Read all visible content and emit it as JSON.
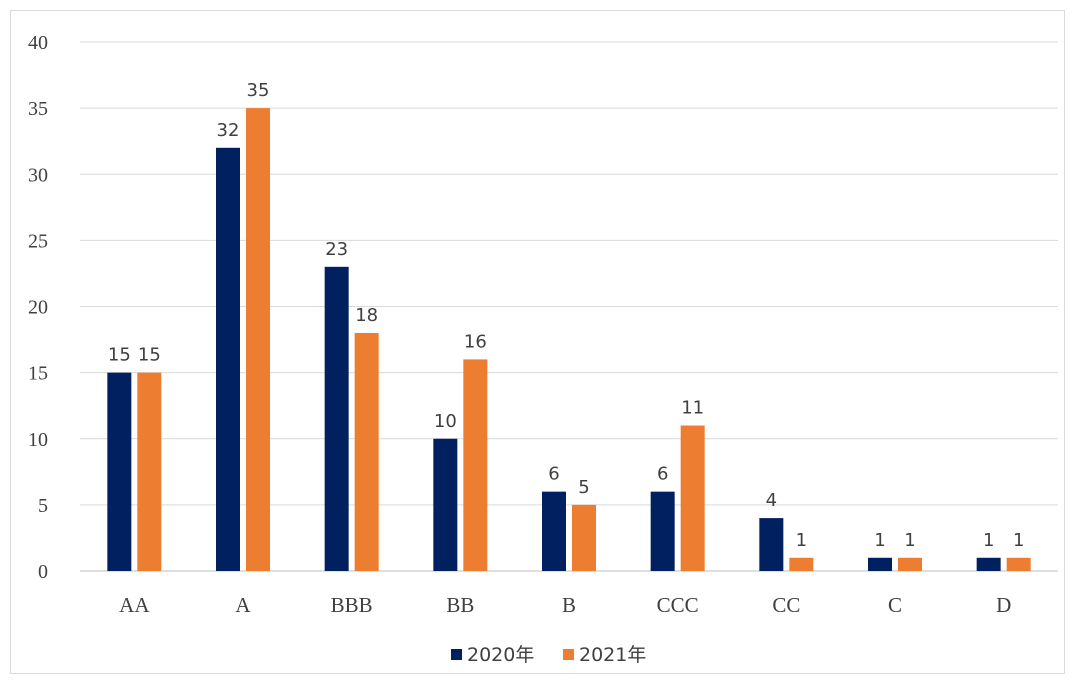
{
  "chart_data": {
    "type": "bar",
    "title": "",
    "xlabel": "",
    "ylabel": "",
    "ylim": [
      0,
      40
    ],
    "yticks": [
      0,
      5,
      10,
      15,
      20,
      25,
      30,
      35,
      40
    ],
    "grid": true,
    "legend_position": "bottom",
    "categories": [
      "AA",
      "A",
      "BBB",
      "BB",
      "B",
      "CCC",
      "CC",
      "C",
      "D"
    ],
    "series": [
      {
        "name": "2020年",
        "color": "#002060",
        "values": [
          15,
          32,
          23,
          10,
          6,
          6,
          4,
          1,
          1
        ]
      },
      {
        "name": "2021年",
        "color": "#ED7D31",
        "values": [
          15,
          35,
          18,
          16,
          5,
          11,
          1,
          1,
          1
        ]
      }
    ]
  }
}
